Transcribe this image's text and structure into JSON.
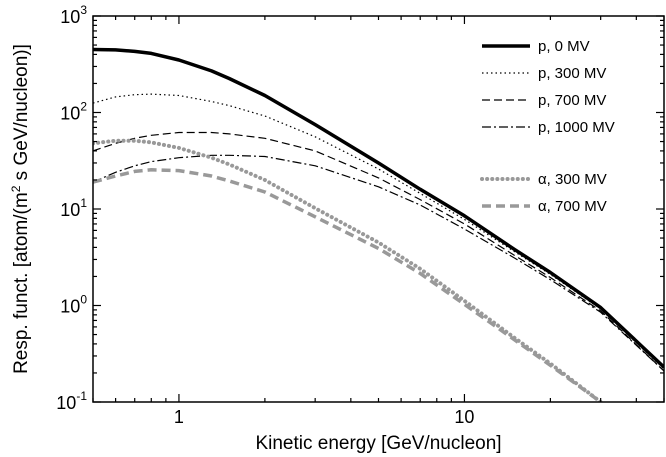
{
  "chart_data": {
    "type": "line",
    "xlabel": "Kinetic energy [GeV/nucleon]",
    "ylabel": {
      "pre": "Resp. funct. [atom/(m",
      "sup": "2",
      "post": " s GeV/nucleon)]"
    },
    "xscale": "log",
    "yscale": "log",
    "xlim": [
      0.5,
      50
    ],
    "ylim": [
      0.1,
      1000
    ],
    "grid": false,
    "legend_position": "top-right",
    "x_ticks": [
      {
        "value": 1,
        "label": "1"
      },
      {
        "value": 10,
        "label": "10"
      }
    ],
    "y_ticks": [
      {
        "value": 0.1,
        "base": "10",
        "exp": "-1"
      },
      {
        "value": 1,
        "base": "10",
        "exp": "0"
      },
      {
        "value": 10,
        "base": "10",
        "exp": "1"
      },
      {
        "value": 100,
        "base": "10",
        "exp": "2"
      },
      {
        "value": 1000,
        "base": "10",
        "exp": "3"
      }
    ],
    "series": [
      {
        "name": "p, 0 MV",
        "color": "#000000",
        "style": "solid-thick",
        "x": [
          0.5,
          0.6,
          0.7,
          0.8,
          1.0,
          1.3,
          1.5,
          2,
          3,
          5,
          7,
          10,
          15,
          20,
          30,
          50
        ],
        "y": [
          450,
          445,
          430,
          410,
          350,
          270,
          225,
          150,
          75,
          30,
          16,
          8.5,
          3.8,
          2.2,
          0.95,
          0.23
        ]
      },
      {
        "name": "p, 300 MV",
        "color": "#000000",
        "style": "dotted",
        "x": [
          0.5,
          0.6,
          0.7,
          0.8,
          1.0,
          1.3,
          1.5,
          2,
          3,
          5,
          7,
          10,
          15,
          20,
          30,
          50
        ],
        "y": [
          125,
          145,
          153,
          155,
          150,
          130,
          118,
          92,
          56,
          26,
          14.5,
          7.8,
          3.6,
          2.1,
          0.92,
          0.22
        ]
      },
      {
        "name": "p, 700 MV",
        "color": "#000000",
        "style": "dashed",
        "x": [
          0.5,
          0.6,
          0.7,
          0.8,
          1.0,
          1.3,
          1.5,
          2,
          3,
          5,
          7,
          10,
          15,
          20,
          30,
          50
        ],
        "y": [
          40,
          48,
          54,
          58,
          62,
          62,
          60,
          54,
          40,
          21,
          12.5,
          7.0,
          3.3,
          1.95,
          0.88,
          0.21
        ]
      },
      {
        "name": "p, 1000 MV",
        "color": "#000000",
        "style": "dash-dot",
        "x": [
          0.5,
          0.6,
          0.7,
          0.8,
          1.0,
          1.3,
          1.5,
          2,
          3,
          5,
          7,
          10,
          15,
          20,
          30,
          50
        ],
        "y": [
          19,
          24,
          28,
          31,
          34,
          36,
          36,
          35,
          28,
          17,
          11,
          6.2,
          3.1,
          1.85,
          0.85,
          0.21
        ]
      },
      {
        "name": "α, 300 MV",
        "color": "#999999",
        "style": "dotted-thick",
        "x": [
          0.5,
          0.6,
          0.7,
          0.8,
          1.0,
          1.3,
          1.5,
          2,
          3,
          5,
          7,
          10,
          15,
          20,
          30
        ],
        "y": [
          48,
          51,
          51,
          49,
          43,
          34,
          29,
          20,
          10.2,
          4.5,
          2.4,
          1.12,
          0.46,
          0.25,
          0.1
        ]
      },
      {
        "name": "α, 700 MV",
        "color": "#999999",
        "style": "dashed-thick",
        "x": [
          0.5,
          0.6,
          0.7,
          0.8,
          1.0,
          1.3,
          1.5,
          2,
          3,
          5,
          7,
          10,
          15,
          20,
          30
        ],
        "y": [
          19,
          22,
          24.5,
          25.5,
          25,
          22,
          19.5,
          15,
          8.3,
          3.9,
          2.15,
          1.03,
          0.44,
          0.24,
          0.1
        ]
      }
    ]
  }
}
